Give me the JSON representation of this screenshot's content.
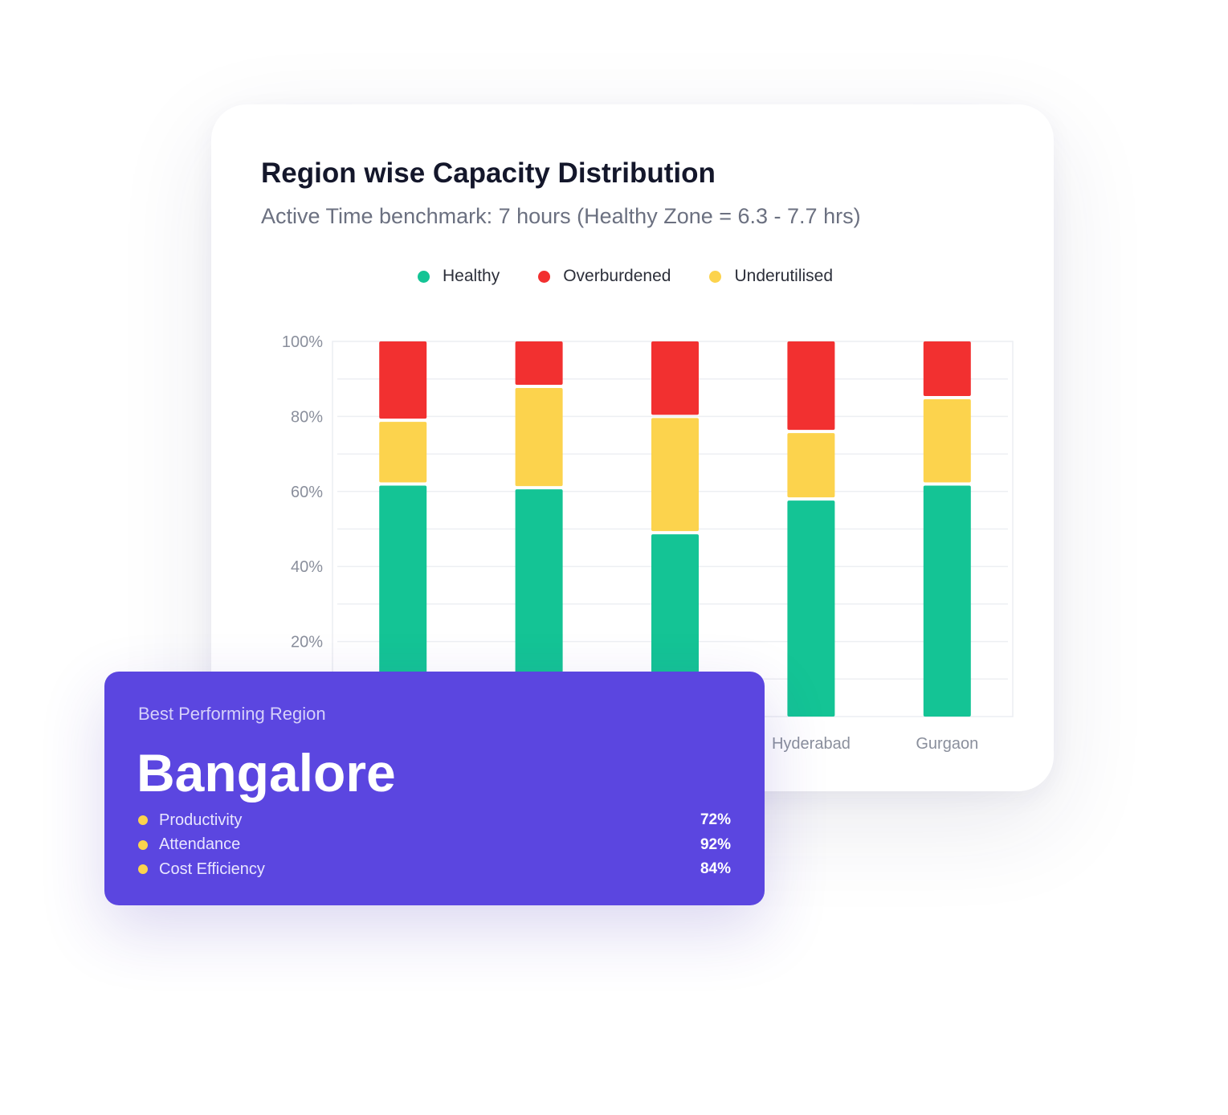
{
  "chart_card": {
    "title": "Region wise Capacity Distribution",
    "subtitle": "Active Time benchmark: 7 hours (Healthy Zone = 6.3 - 7.7 hrs)"
  },
  "colors": {
    "healthy": "#14c495",
    "overburdened": "#f23030",
    "underutilised": "#fcd34d",
    "accent": "#5b46e0"
  },
  "chart_data": {
    "type": "bar",
    "stacked": true,
    "legend_position": "top-center",
    "grid": true,
    "ylim": [
      0,
      100
    ],
    "y_ticks": [
      "100%",
      "80%",
      "60%",
      "40%",
      "20%"
    ],
    "categories": [
      "",
      "",
      "",
      "Hyderabad",
      "Gurgaon"
    ],
    "series": [
      {
        "name": "Healthy",
        "color": "#14c495",
        "values": [
          62,
          61,
          49,
          58,
          62
        ]
      },
      {
        "name": "Underutilised",
        "color": "#fcd34d",
        "values": [
          17,
          27,
          31,
          18,
          23
        ]
      },
      {
        "name": "Overburdened",
        "color": "#f23030",
        "values": [
          21,
          12,
          20,
          24,
          15
        ]
      }
    ]
  },
  "best_card": {
    "label": "Best Performing Region",
    "region": "Bangalore",
    "metrics": [
      {
        "name": "Productivity",
        "value": "72%"
      },
      {
        "name": "Attendance",
        "value": "92%"
      },
      {
        "name": "Cost Efficiency",
        "value": "84%"
      }
    ]
  }
}
